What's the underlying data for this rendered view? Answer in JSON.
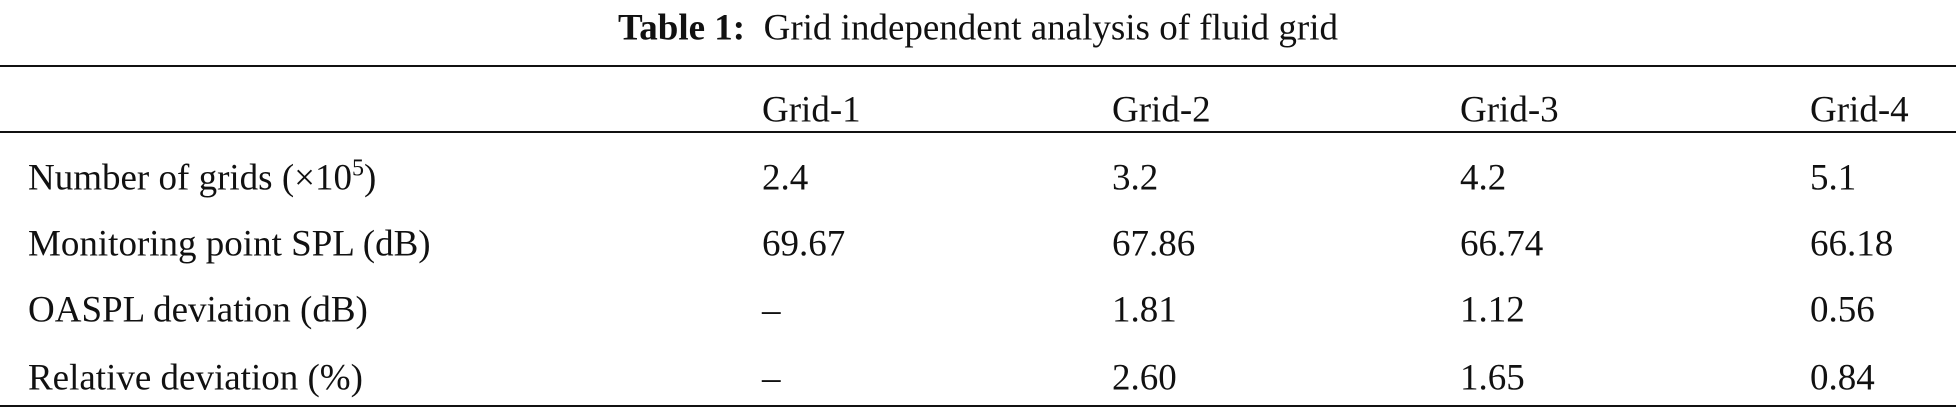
{
  "caption": {
    "label": "Table 1:",
    "text": "Grid independent analysis of fluid grid"
  },
  "table": {
    "columns": [
      "Grid-1",
      "Grid-2",
      "Grid-3",
      "Grid-4"
    ],
    "rows": [
      {
        "label": "Number of grids (×10",
        "label_sup": "5",
        "label_end": ")",
        "cells": [
          "2.4",
          "3.2",
          "4.2",
          "5.1"
        ]
      },
      {
        "label": "Monitoring point SPL (dB)",
        "cells": [
          "69.67",
          "67.86",
          "66.74",
          "66.18"
        ]
      },
      {
        "label": "OASPL deviation (dB)",
        "cells": [
          "–",
          "1.81",
          "1.12",
          "0.56"
        ]
      },
      {
        "label": "Relative deviation (%)",
        "cells": [
          "–",
          "2.60",
          "1.65",
          "0.84"
        ]
      }
    ]
  }
}
